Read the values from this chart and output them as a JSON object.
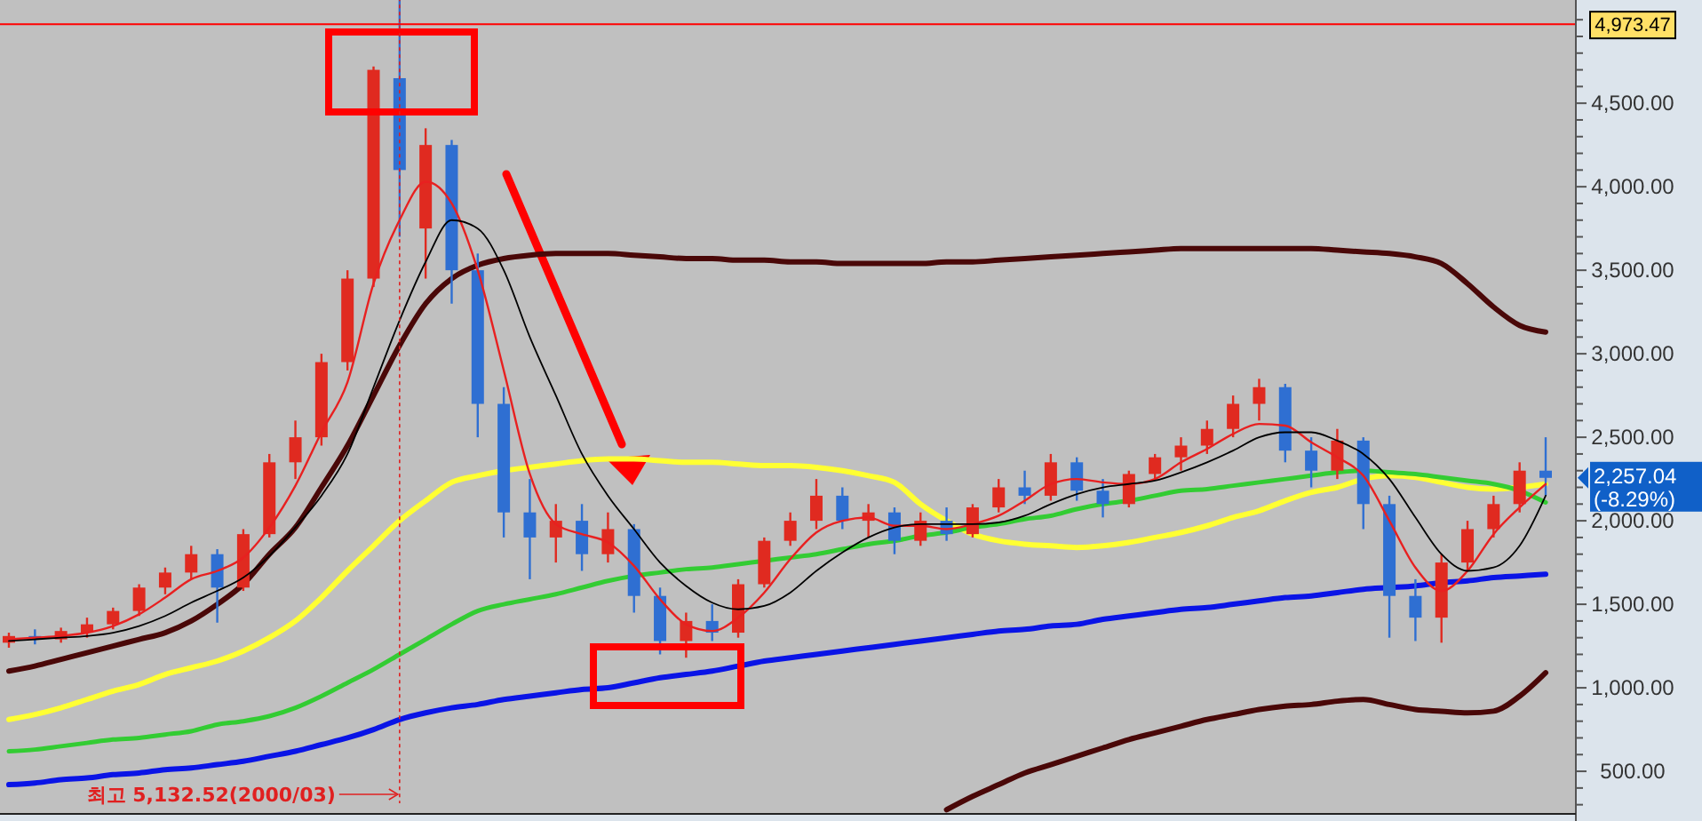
{
  "chart_data": {
    "type": "candlestick",
    "categories": [
      null,
      null,
      null,
      null,
      null,
      null,
      null,
      null,
      null,
      null,
      null,
      null,
      null,
      null,
      null,
      null,
      null,
      null,
      null,
      null,
      null,
      null,
      null,
      null,
      null,
      null,
      null,
      null,
      null,
      null,
      null,
      null,
      null,
      null,
      null,
      null,
      null,
      null,
      null,
      null,
      null,
      null,
      null,
      null,
      null,
      null,
      null,
      null,
      null,
      null,
      null,
      null,
      null,
      null,
      null,
      null,
      null,
      null,
      null,
      null
    ],
    "ohlc": [
      [
        1270,
        1330,
        1240,
        1310
      ],
      [
        1310,
        1350,
        1260,
        1290
      ],
      [
        1290,
        1360,
        1270,
        1340
      ],
      [
        1330,
        1420,
        1300,
        1380
      ],
      [
        1380,
        1480,
        1350,
        1460
      ],
      [
        1460,
        1620,
        1430,
        1600
      ],
      [
        1600,
        1720,
        1560,
        1690
      ],
      [
        1690,
        1850,
        1650,
        1800
      ],
      [
        1800,
        1830,
        1390,
        1600
      ],
      [
        1600,
        1950,
        1580,
        1920
      ],
      [
        1920,
        2400,
        1900,
        2350
      ],
      [
        2350,
        2600,
        2250,
        2500
      ],
      [
        2500,
        3000,
        2450,
        2950
      ],
      [
        2950,
        3500,
        2900,
        3450
      ],
      [
        3450,
        4720,
        3400,
        4700
      ],
      [
        4650,
        5132.52,
        3700,
        4100
      ],
      [
        3750,
        4350,
        3450,
        4250
      ],
      [
        4250,
        4280,
        3300,
        3500
      ],
      [
        3500,
        3600,
        2500,
        2700
      ],
      [
        2700,
        2800,
        1900,
        2050
      ],
      [
        2050,
        2250,
        1650,
        1900
      ],
      [
        1900,
        2100,
        1750,
        2000
      ],
      [
        2000,
        2100,
        1700,
        1800
      ],
      [
        1800,
        2050,
        1750,
        1950
      ],
      [
        1950,
        1980,
        1450,
        1550
      ],
      [
        1550,
        1600,
        1200,
        1280
      ],
      [
        1280,
        1450,
        1180,
        1400
      ],
      [
        1400,
        1500,
        1280,
        1330
      ],
      [
        1330,
        1650,
        1300,
        1620
      ],
      [
        1620,
        1900,
        1600,
        1880
      ],
      [
        1880,
        2050,
        1850,
        2000
      ],
      [
        2000,
        2250,
        1950,
        2150
      ],
      [
        2150,
        2200,
        1950,
        2000
      ],
      [
        2000,
        2100,
        1900,
        2050
      ],
      [
        2050,
        2080,
        1800,
        1880
      ],
      [
        1880,
        2050,
        1850,
        2000
      ],
      [
        2000,
        2080,
        1880,
        1920
      ],
      [
        1920,
        2100,
        1900,
        2080
      ],
      [
        2080,
        2250,
        2050,
        2200
      ],
      [
        2200,
        2300,
        2100,
        2150
      ],
      [
        2150,
        2400,
        2120,
        2350
      ],
      [
        2350,
        2380,
        2120,
        2180
      ],
      [
        2180,
        2250,
        2020,
        2100
      ],
      [
        2100,
        2300,
        2080,
        2280
      ],
      [
        2280,
        2400,
        2250,
        2380
      ],
      [
        2380,
        2500,
        2300,
        2450
      ],
      [
        2450,
        2600,
        2400,
        2550
      ],
      [
        2550,
        2750,
        2500,
        2700
      ],
      [
        2700,
        2850,
        2600,
        2800
      ],
      [
        2800,
        2820,
        2350,
        2420
      ],
      [
        2420,
        2500,
        2200,
        2300
      ],
      [
        2300,
        2550,
        2250,
        2480
      ],
      [
        2480,
        2500,
        1950,
        2100
      ],
      [
        2100,
        2150,
        1300,
        1550
      ],
      [
        1550,
        1650,
        1280,
        1420
      ],
      [
        1420,
        1800,
        1270,
        1750
      ],
      [
        1750,
        2000,
        1700,
        1950
      ],
      [
        1950,
        2150,
        1900,
        2100
      ],
      [
        2100,
        2350,
        2050,
        2300
      ],
      [
        2300,
        2500,
        2150,
        2257.04
      ]
    ],
    "series": [
      {
        "type": "line",
        "color": "#e82020",
        "values": [
          1290,
          1300,
          1310,
          1330,
          1370,
          1440,
          1540,
          1650,
          1700,
          1780,
          1960,
          2210,
          2530,
          2830,
          3420,
          3800,
          4030,
          3900,
          3500,
          2900,
          2280,
          1980,
          1920,
          1870,
          1730,
          1530,
          1380,
          1340,
          1420,
          1570,
          1770,
          1930,
          2000,
          2020,
          1970,
          1970,
          1950,
          1980,
          2030,
          2120,
          2220,
          2250,
          2230,
          2220,
          2250,
          2350,
          2430,
          2520,
          2580,
          2570,
          2470,
          2380,
          2270,
          2000,
          1720,
          1580,
          1700,
          1920,
          2080,
          2220
        ]
      },
      {
        "type": "line",
        "color": "#000000",
        "values": [
          1280,
          1290,
          1300,
          1310,
          1330,
          1370,
          1430,
          1510,
          1580,
          1660,
          1790,
          1960,
          2150,
          2400,
          2800,
          3200,
          3550,
          3800,
          3750,
          3500,
          3100,
          2750,
          2400,
          2150,
          1950,
          1750,
          1610,
          1510,
          1470,
          1490,
          1570,
          1700,
          1810,
          1900,
          1960,
          1980,
          1980,
          1980,
          1990,
          2030,
          2100,
          2160,
          2200,
          2220,
          2240,
          2290,
          2350,
          2420,
          2500,
          2530,
          2530,
          2480,
          2400,
          2250,
          2020,
          1800,
          1700,
          1720,
          1850,
          2150
        ]
      },
      {
        "type": "line",
        "color": "#4a0808",
        "values": [
          1100,
          1130,
          1170,
          1210,
          1250,
          1290,
          1330,
          1400,
          1500,
          1620,
          1800,
          1960,
          2200,
          2450,
          2750,
          3050,
          3300,
          3450,
          3530,
          3570,
          3590,
          3600,
          3600,
          3600,
          3590,
          3580,
          3570,
          3570,
          3560,
          3560,
          3550,
          3550,
          3540,
          3540,
          3540,
          3540,
          3550,
          3550,
          3560,
          3570,
          3580,
          3590,
          3600,
          3610,
          3620,
          3630,
          3630,
          3630,
          3630,
          3630,
          3630,
          3620,
          3610,
          3600,
          3580,
          3540,
          3420,
          3280,
          3170,
          3130
        ]
      },
      {
        "type": "line",
        "color": "#4a0808",
        "values": [
          null,
          null,
          null,
          null,
          null,
          null,
          null,
          null,
          null,
          null,
          null,
          null,
          null,
          null,
          null,
          null,
          null,
          null,
          null,
          null,
          null,
          null,
          null,
          null,
          null,
          null,
          null,
          null,
          null,
          null,
          null,
          null,
          null,
          null,
          null,
          null,
          270,
          350,
          420,
          490,
          540,
          590,
          640,
          690,
          730,
          770,
          810,
          840,
          870,
          890,
          900,
          920,
          930,
          900,
          870,
          860,
          850,
          860,
          950,
          1090
        ]
      },
      {
        "type": "line",
        "color": "#ffff33",
        "values": [
          810,
          840,
          880,
          930,
          980,
          1020,
          1080,
          1120,
          1160,
          1220,
          1300,
          1400,
          1540,
          1700,
          1850,
          2000,
          2120,
          2230,
          2270,
          2300,
          2320,
          2340,
          2360,
          2370,
          2370,
          2360,
          2350,
          2350,
          2340,
          2330,
          2330,
          2320,
          2300,
          2270,
          2230,
          2100,
          2000,
          1920,
          1880,
          1860,
          1850,
          1840,
          1850,
          1870,
          1900,
          1930,
          1970,
          2020,
          2060,
          2120,
          2170,
          2200,
          2250,
          2270,
          2260,
          2230,
          2200,
          2190,
          2200,
          2220
        ]
      },
      {
        "type": "line",
        "color": "#33cc33",
        "values": [
          620,
          630,
          650,
          670,
          690,
          700,
          720,
          740,
          780,
          800,
          830,
          880,
          950,
          1030,
          1110,
          1200,
          1290,
          1380,
          1460,
          1500,
          1530,
          1560,
          1600,
          1640,
          1670,
          1690,
          1710,
          1720,
          1740,
          1760,
          1780,
          1800,
          1830,
          1860,
          1880,
          1910,
          1930,
          1960,
          1980,
          2010,
          2030,
          2070,
          2100,
          2120,
          2150,
          2180,
          2190,
          2210,
          2230,
          2250,
          2270,
          2290,
          2300,
          2290,
          2280,
          2260,
          2240,
          2220,
          2180,
          2110
        ]
      },
      {
        "type": "line",
        "color": "#0a14e6",
        "values": [
          420,
          430,
          450,
          460,
          480,
          490,
          510,
          520,
          540,
          560,
          590,
          620,
          660,
          700,
          750,
          810,
          850,
          880,
          900,
          930,
          950,
          970,
          990,
          1000,
          1030,
          1060,
          1080,
          1100,
          1130,
          1160,
          1180,
          1200,
          1220,
          1240,
          1260,
          1280,
          1300,
          1320,
          1340,
          1350,
          1370,
          1380,
          1410,
          1430,
          1450,
          1470,
          1480,
          1500,
          1520,
          1540,
          1550,
          1570,
          1590,
          1600,
          1610,
          1630,
          1640,
          1660,
          1670,
          1680
        ]
      }
    ],
    "ylim": [
      245,
      5118
    ],
    "yticks": [
      {
        "value": 300,
        "label": null
      },
      {
        "value": 400,
        "label": null
      },
      {
        "value": 500,
        "label": "500.00"
      },
      {
        "value": 600,
        "label": null
      },
      {
        "value": 700,
        "label": null
      },
      {
        "value": 800,
        "label": null
      },
      {
        "value": 900,
        "label": null
      },
      {
        "value": 1000,
        "label": "1,000.00"
      },
      {
        "value": 1100,
        "label": null
      },
      {
        "value": 1200,
        "label": null
      },
      {
        "value": 1300,
        "label": null
      },
      {
        "value": 1400,
        "label": null
      },
      {
        "value": 1500,
        "label": "1,500.00"
      },
      {
        "value": 1600,
        "label": null
      },
      {
        "value": 1700,
        "label": null
      },
      {
        "value": 1800,
        "label": null
      },
      {
        "value": 1900,
        "label": null
      },
      {
        "value": 2000,
        "label": "2,000.00"
      },
      {
        "value": 2100,
        "label": null
      },
      {
        "value": 2200,
        "label": null
      },
      {
        "value": 2300,
        "label": null
      },
      {
        "value": 2400,
        "label": null
      },
      {
        "value": 2500,
        "label": "2,500.00"
      },
      {
        "value": 2600,
        "label": null
      },
      {
        "value": 2700,
        "label": null
      },
      {
        "value": 2800,
        "label": null
      },
      {
        "value": 2900,
        "label": null
      },
      {
        "value": 3000,
        "label": "3,000.00"
      },
      {
        "value": 3100,
        "label": null
      },
      {
        "value": 3200,
        "label": null
      },
      {
        "value": 3300,
        "label": null
      },
      {
        "value": 3400,
        "label": null
      },
      {
        "value": 3500,
        "label": "3,500.00"
      },
      {
        "value": 3600,
        "label": null
      },
      {
        "value": 3700,
        "label": null
      },
      {
        "value": 3800,
        "label": null
      },
      {
        "value": 3900,
        "label": null
      },
      {
        "value": 4000,
        "label": "4,000.00"
      },
      {
        "value": 4100,
        "label": null
      },
      {
        "value": 4200,
        "label": null
      },
      {
        "value": 4300,
        "label": null
      },
      {
        "value": 4400,
        "label": null
      },
      {
        "value": 4500,
        "label": "4,500.00"
      },
      {
        "value": 4600,
        "label": null
      },
      {
        "value": 4700,
        "label": null
      },
      {
        "value": 4800,
        "label": null
      },
      {
        "value": 4900,
        "label": null
      },
      {
        "value": 5000,
        "label": null
      }
    ],
    "tick_labels": "y",
    "ref_lines": [
      {
        "axis": "y",
        "value": 4973.47,
        "label": "4,973.47",
        "color": "#ff0000"
      }
    ],
    "annotations": [
      "최고 5,132.52(2000/03)",
      "2,257.04 (-8.29%)"
    ]
  }
}
